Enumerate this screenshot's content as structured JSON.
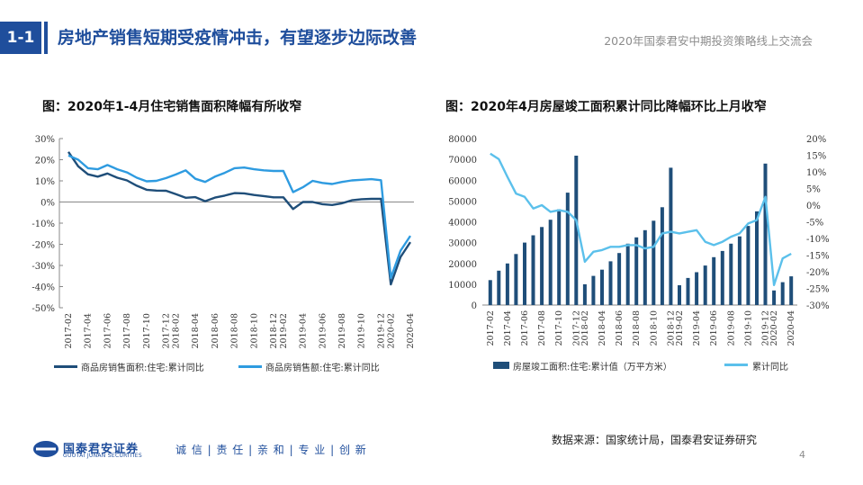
{
  "header": {
    "section_number": "1-1",
    "title": "房地产销售短期受疫情冲击，有望逐步边际改善",
    "event": "2020年国泰君安中期投资策略线上交流会"
  },
  "footer": {
    "logo_cn": "国泰君安证券",
    "logo_en": "GUOTAI JUNAN SECURITIES",
    "slogan": "诚 信 | 责 任 | 亲 和 | 专 业 | 创 新",
    "source": "数据来源：国家统计局，国泰君安证券研究",
    "page": "4"
  },
  "colors": {
    "brand": "#1f4e9c",
    "dark_series": "#1f4e79",
    "light_series": "#2e9be0",
    "bar_light": "#5bc0eb"
  },
  "chart_data": [
    {
      "type": "line",
      "title": "图：2020年1-4月住宅销售面积降幅有所收窄",
      "x": [
        "2017-02",
        "2017-03",
        "2017-04",
        "2017-05",
        "2017-06",
        "2017-07",
        "2017-08",
        "2017-09",
        "2017-10",
        "2017-11",
        "2017-12",
        "2018-02",
        "2018-03",
        "2018-04",
        "2018-05",
        "2018-06",
        "2018-07",
        "2018-08",
        "2018-09",
        "2018-10",
        "2018-11",
        "2018-12",
        "2019-02",
        "2019-03",
        "2019-04",
        "2019-05",
        "2019-06",
        "2019-07",
        "2019-08",
        "2019-09",
        "2019-10",
        "2019-11",
        "2019-12",
        "2020-02",
        "2020-03",
        "2020-04"
      ],
      "tick_labels": [
        "2017-02",
        "2017-04",
        "2017-06",
        "2017-08",
        "2017-10",
        "2017-12",
        "2018-02",
        "2018-04",
        "2018-06",
        "2018-08",
        "2018-10",
        "2018-12",
        "2019-02",
        "2019-04",
        "2019-06",
        "2019-08",
        "2019-10",
        "2019-12",
        "2020-02",
        "2020-04"
      ],
      "series": [
        {
          "name": "商品房销售面积:住宅:累计同比",
          "color": "#1f4e79",
          "values": [
            23.7,
            16.9,
            13.1,
            12.0,
            13.5,
            11.5,
            10.2,
            7.7,
            5.8,
            5.4,
            5.3,
            3.7,
            2.0,
            2.3,
            0.4,
            2.1,
            3.0,
            4.2,
            4.1,
            3.3,
            2.8,
            2.2,
            2.2,
            -3.3,
            0.0,
            0.0,
            -1.0,
            -1.4,
            -0.6,
            0.8,
            1.3,
            1.5,
            1.5,
            -39.0,
            -26.0,
            -19.0
          ]
        },
        {
          "name": "商品房销售额:住宅:累计同比",
          "color": "#2e9be0",
          "values": [
            22.0,
            20.0,
            16.0,
            15.5,
            17.5,
            15.5,
            14.0,
            11.5,
            9.8,
            10.0,
            11.3,
            13.0,
            15.0,
            11.0,
            9.5,
            12.0,
            13.8,
            16.0,
            16.3,
            15.5,
            15.0,
            14.7,
            14.7,
            4.7,
            7.0,
            10.0,
            9.0,
            8.5,
            9.5,
            10.2,
            10.5,
            10.8,
            10.3,
            -35.9,
            -23.0,
            -16.0
          ]
        }
      ],
      "ylim": [
        -50,
        30
      ],
      "yticks": [
        "30%",
        "20%",
        "10%",
        "0%",
        "-10%",
        "-20%",
        "-30%",
        "-40%",
        "-50%"
      ]
    },
    {
      "type": "bar",
      "title": "图：2020年4月房屋竣工面积累计同比降幅环比上月收窄",
      "x": [
        "2017-02",
        "2017-03",
        "2017-04",
        "2017-05",
        "2017-06",
        "2017-07",
        "2017-08",
        "2017-09",
        "2017-10",
        "2017-11",
        "2017-12",
        "2018-02",
        "2018-03",
        "2018-04",
        "2018-05",
        "2018-06",
        "2018-07",
        "2018-08",
        "2018-09",
        "2018-10",
        "2018-11",
        "2018-12",
        "2019-02",
        "2019-03",
        "2019-04",
        "2019-05",
        "2019-06",
        "2019-07",
        "2019-08",
        "2019-09",
        "2019-10",
        "2019-11",
        "2019-12",
        "2020-02",
        "2020-03",
        "2020-04"
      ],
      "tick_labels": [
        "2017-02",
        "2017-04",
        "2017-06",
        "2017-08",
        "2017-10",
        "2017-12",
        "2018-02",
        "2018-04",
        "2018-06",
        "2018-08",
        "2018-10",
        "2018-12",
        "2019-02",
        "2019-04",
        "2019-06",
        "2019-08",
        "2019-10",
        "2019-12",
        "2020-02",
        "2020-04"
      ],
      "bar_series": {
        "name": "房屋竣工面积:住宅:累计值（万平方米）",
        "color": "#1f4e79",
        "values": [
          12000,
          16500,
          20000,
          24500,
          30000,
          33500,
          37500,
          41000,
          46000,
          54000,
          71800,
          10000,
          14000,
          17000,
          21000,
          25000,
          29500,
          32500,
          36000,
          40500,
          47000,
          66000,
          9500,
          13000,
          15800,
          19000,
          23000,
          26000,
          29500,
          33000,
          38000,
          45000,
          68000,
          7000,
          11000,
          13800
        ]
      },
      "line_series": {
        "name": "累计同比",
        "color": "#5bc0eb",
        "values": [
          15.5,
          13.8,
          8.5,
          3.5,
          2.5,
          -1.0,
          0.0,
          -2.0,
          -1.5,
          -2.0,
          -4.5,
          -17.0,
          -14.0,
          -13.5,
          -12.5,
          -12.5,
          -12.0,
          -12.0,
          -13.0,
          -12.5,
          -8.5,
          -8.0,
          -8.5,
          -8.0,
          -7.5,
          -11.0,
          -12.0,
          -11.0,
          -9.5,
          -8.5,
          -5.5,
          -4.5,
          2.5,
          -24.0,
          -16.0,
          -14.6
        ]
      },
      "y_left_lim": [
        0,
        80000
      ],
      "y_left_ticks": [
        "80000",
        "70000",
        "60000",
        "50000",
        "40000",
        "30000",
        "20000",
        "10000",
        "0"
      ],
      "y_right_lim": [
        -30,
        20
      ],
      "y_right_ticks": [
        "20%",
        "15%",
        "10%",
        "5%",
        "0%",
        "-5%",
        "-10%",
        "-15%",
        "-20%",
        "-25%",
        "-30%"
      ]
    }
  ]
}
